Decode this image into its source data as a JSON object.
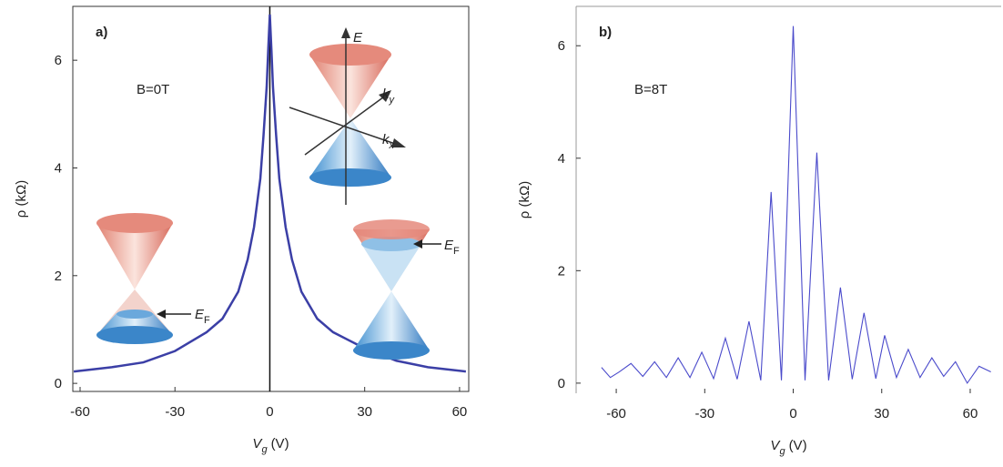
{
  "chart_data": [
    {
      "type": "line",
      "panel_label": "a)",
      "field_label": "B=0T",
      "y_label": "ρ (kΩ)",
      "x_label": {
        "text": "V",
        "sub": "g",
        "unit": "(V)"
      },
      "x": [
        -62,
        -50,
        -40,
        -30,
        -20,
        -15,
        -10,
        -7,
        -5,
        -3,
        -2,
        -1,
        -0.5,
        0,
        0.5,
        1,
        2,
        3,
        5,
        7,
        10,
        15,
        20,
        30,
        40,
        50,
        62
      ],
      "series": [
        {
          "color": "#3b3fa6",
          "values": [
            0.22,
            0.3,
            0.39,
            0.6,
            0.95,
            1.2,
            1.7,
            2.3,
            2.9,
            3.8,
            4.6,
            5.5,
            6.2,
            6.85,
            6.2,
            5.5,
            4.6,
            3.8,
            2.9,
            2.3,
            1.7,
            1.2,
            0.95,
            0.65,
            0.42,
            0.3,
            0.22
          ]
        }
      ],
      "xlim": [
        -62.3,
        62.9
      ],
      "ylim": [
        -0.15,
        7.0
      ],
      "xticks": [
        -60,
        -30,
        0,
        30,
        60
      ],
      "yticks": [
        0,
        2,
        4,
        6
      ],
      "zero_line": true,
      "annotations": [
        {
          "text": "E"
        },
        {
          "text": "k",
          "sub": "y"
        },
        {
          "text": "k",
          "sub": "x"
        },
        {
          "text": "E",
          "sub": "F"
        },
        {
          "text": "E",
          "sub": "F"
        }
      ]
    },
    {
      "type": "line",
      "panel_label": "b)",
      "field_label": "B=8T",
      "y_label": "ρ (kΩ)",
      "x_label": {
        "text": "V",
        "sub": "g",
        "unit": "(V)"
      },
      "x": [
        -65,
        -62,
        -59,
        -55,
        -51,
        -47,
        -43,
        -39,
        -35,
        -31,
        -27,
        -23,
        -19,
        -15,
        -11,
        -7.5,
        -4,
        0,
        4,
        8,
        12,
        16,
        20,
        24,
        28,
        31,
        35,
        39,
        43,
        47,
        51,
        55,
        59,
        63,
        67
      ],
      "series": [
        {
          "color": "#4a4acb",
          "values": [
            0.28,
            0.1,
            0.2,
            0.35,
            0.12,
            0.38,
            0.1,
            0.45,
            0.1,
            0.55,
            0.08,
            0.8,
            0.07,
            1.1,
            0.05,
            3.4,
            0.05,
            6.35,
            0.05,
            4.1,
            0.05,
            1.7,
            0.07,
            1.25,
            0.08,
            0.85,
            0.1,
            0.6,
            0.1,
            0.45,
            0.12,
            0.38,
            0.0,
            0.3,
            0.2
          ]
        }
      ],
      "xlim": [
        -73.6,
        70.5
      ],
      "ylim": [
        -0.18,
        6.7
      ],
      "xticks": [
        -60,
        -30,
        0,
        30,
        60
      ],
      "yticks": [
        0,
        2,
        4,
        6
      ]
    }
  ]
}
